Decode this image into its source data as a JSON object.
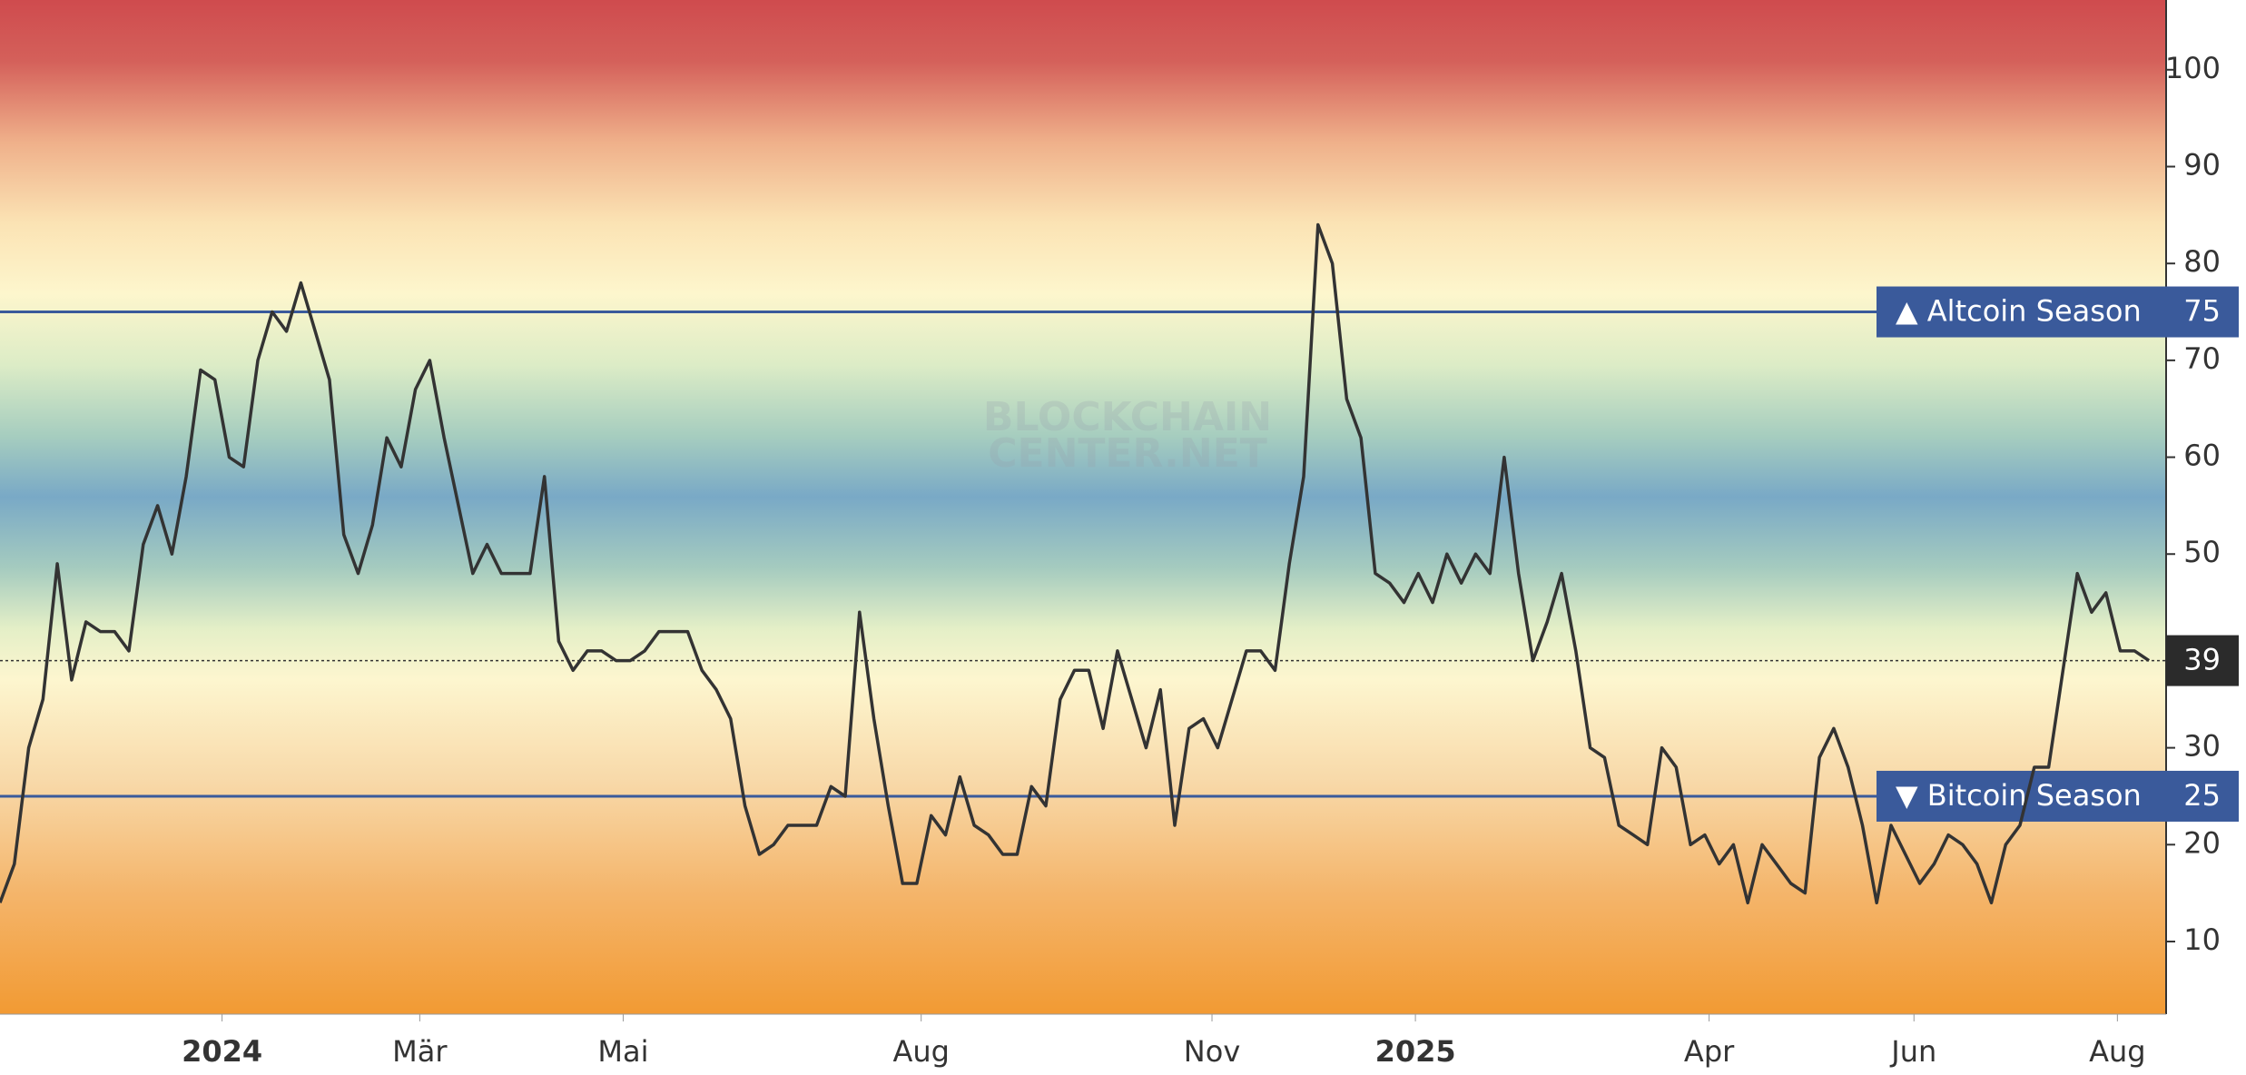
{
  "chart_data": {
    "type": "line",
    "color": "#333333",
    "values": [
      14,
      18,
      30,
      35,
      49,
      37,
      43,
      42,
      42,
      40,
      51,
      55,
      50,
      58,
      69,
      68,
      60,
      59,
      70,
      75,
      73,
      78,
      73,
      68,
      52,
      48,
      53,
      62,
      59,
      67,
      70,
      62,
      55,
      48,
      51,
      48,
      48,
      48,
      58,
      41,
      38,
      40,
      40,
      39,
      39,
      40,
      42,
      42,
      42,
      38,
      36,
      33,
      24,
      19,
      20,
      22,
      22,
      22,
      26,
      25,
      44,
      33,
      24,
      16,
      16,
      23,
      21,
      27,
      22,
      21,
      19,
      19,
      26,
      24,
      35,
      38,
      38,
      32,
      40,
      35,
      30,
      36,
      22,
      32,
      33,
      30,
      35,
      40,
      40,
      38,
      49,
      58,
      84,
      80,
      66,
      62,
      48,
      47,
      45,
      48,
      45,
      50,
      47,
      50,
      48,
      60,
      48,
      39,
      43,
      48,
      40,
      30,
      29,
      22,
      21,
      20,
      30,
      28,
      20,
      21,
      18,
      20,
      14,
      20,
      18,
      16,
      15,
      29,
      32,
      28,
      22,
      14,
      22,
      19,
      16,
      18,
      21,
      20,
      18,
      14,
      20,
      22,
      28,
      28,
      38,
      48,
      44,
      46,
      40,
      40,
      39
    ],
    "xlim": [
      0,
      151.2
    ],
    "xticks": [
      {
        "value": 15.5,
        "label": "2024"
      },
      {
        "value": 29.3,
        "label": "Mär"
      },
      {
        "value": 43.5,
        "label": "Mai"
      },
      {
        "value": 64.3,
        "label": "Aug"
      },
      {
        "value": 84.6,
        "label": "Nov"
      },
      {
        "value": 98.8,
        "label": "2025"
      },
      {
        "value": 119.3,
        "label": "Apr"
      },
      {
        "value": 133.6,
        "label": "Jun"
      },
      {
        "value": 147.8,
        "label": "Aug"
      }
    ],
    "ylim": [
      2.5,
      107.2
    ],
    "yticks": [
      10,
      20,
      30,
      40,
      50,
      60,
      70,
      80,
      90,
      100
    ],
    "yaxis_side": "right",
    "reference_lines": [
      {
        "label": "▲ Altcoin Season",
        "value": 75,
        "color": "#3a5a9b"
      },
      {
        "label": "▼ Bitcoin Season",
        "value": 25,
        "color": "#3a5a9b"
      }
    ],
    "watermark": [
      "BLOCKCHAIN",
      "CENTER.NET"
    ]
  }
}
